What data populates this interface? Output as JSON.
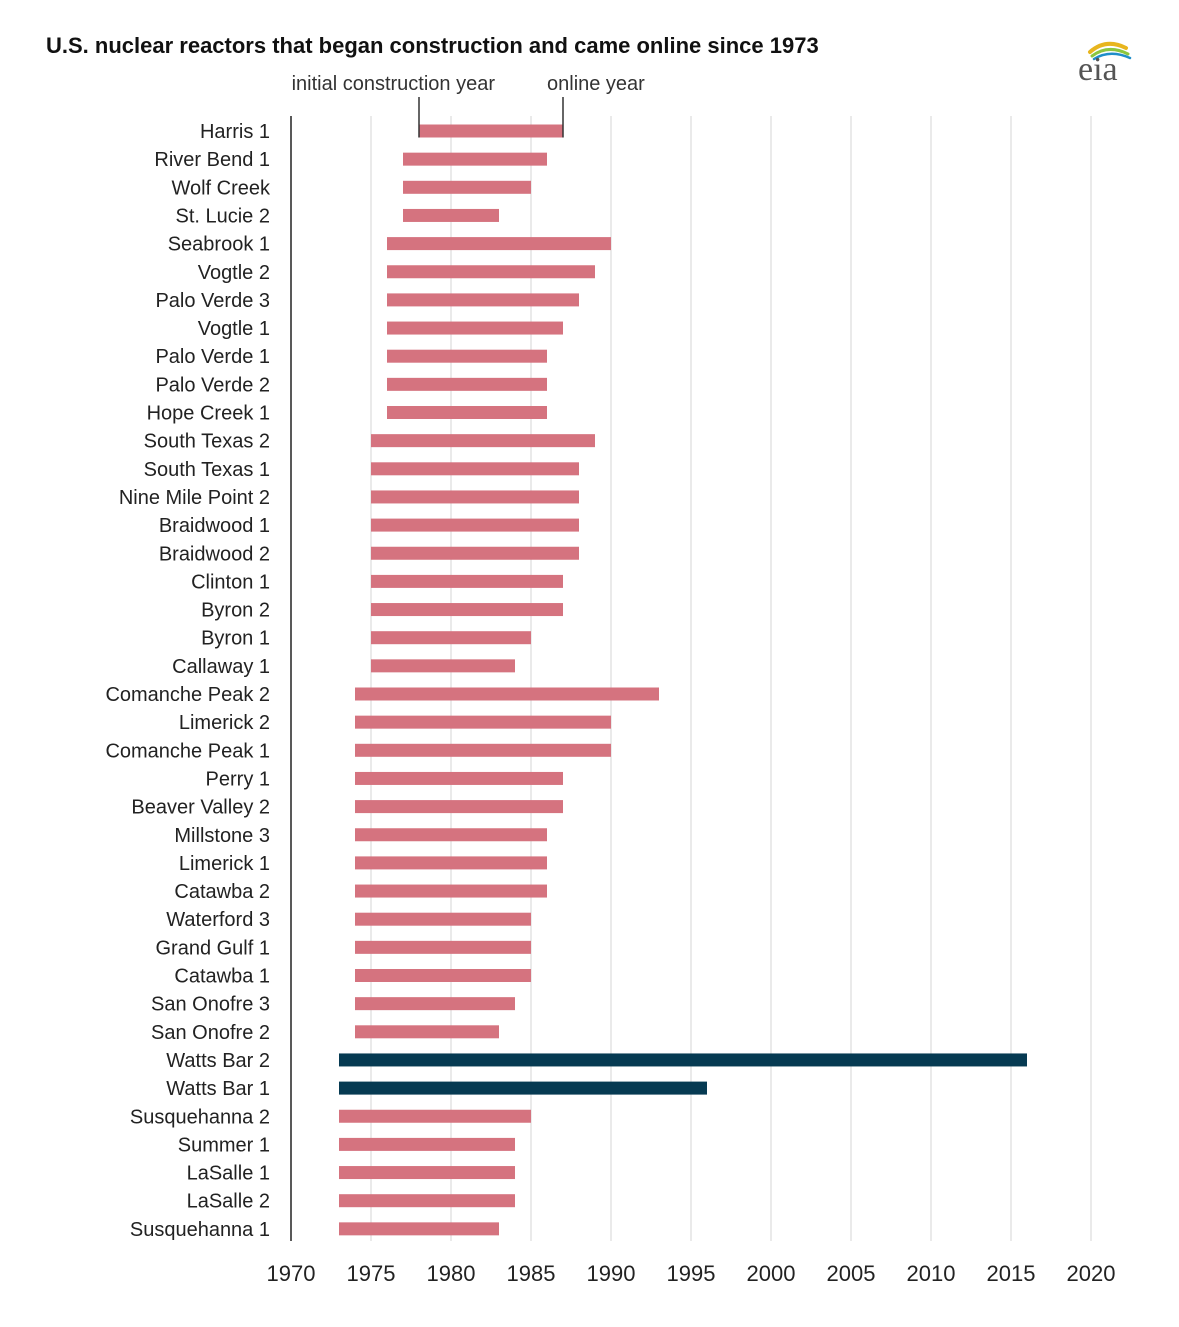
{
  "chart_data": {
    "type": "bar",
    "title": "U.S. nuclear reactors that began construction and came online since 1973",
    "annotations": {
      "start_label": "initial construction year",
      "end_label": "online year"
    },
    "xlim": [
      1970,
      2022
    ],
    "x_ticks": [
      1970,
      1975,
      1980,
      1985,
      1990,
      1995,
      2000,
      2005,
      2010,
      2015,
      2020
    ],
    "grid": true,
    "colors": {
      "default": "#d5737f",
      "highlight": "#063a52"
    },
    "reactors": [
      {
        "name": "Harris 1",
        "start": 1978,
        "online": 1987
      },
      {
        "name": "River Bend 1",
        "start": 1977,
        "online": 1986
      },
      {
        "name": "Wolf Creek",
        "start": 1977,
        "online": 1985
      },
      {
        "name": "St. Lucie 2",
        "start": 1977,
        "online": 1983
      },
      {
        "name": "Seabrook 1",
        "start": 1976,
        "online": 1990
      },
      {
        "name": "Vogtle 2",
        "start": 1976,
        "online": 1989
      },
      {
        "name": "Palo Verde 3",
        "start": 1976,
        "online": 1988
      },
      {
        "name": "Vogtle 1",
        "start": 1976,
        "online": 1987
      },
      {
        "name": "Palo Verde 1",
        "start": 1976,
        "online": 1986
      },
      {
        "name": "Palo Verde 2",
        "start": 1976,
        "online": 1986
      },
      {
        "name": "Hope Creek 1",
        "start": 1976,
        "online": 1986
      },
      {
        "name": "South Texas 2",
        "start": 1975,
        "online": 1989
      },
      {
        "name": "South Texas 1",
        "start": 1975,
        "online": 1988
      },
      {
        "name": "Nine Mile Point 2",
        "start": 1975,
        "online": 1988
      },
      {
        "name": "Braidwood 1",
        "start": 1975,
        "online": 1988
      },
      {
        "name": "Braidwood 2",
        "start": 1975,
        "online": 1988
      },
      {
        "name": "Clinton 1",
        "start": 1975,
        "online": 1987
      },
      {
        "name": "Byron 2",
        "start": 1975,
        "online": 1987
      },
      {
        "name": "Byron 1",
        "start": 1975,
        "online": 1985
      },
      {
        "name": "Callaway 1",
        "start": 1975,
        "online": 1984
      },
      {
        "name": "Comanche Peak 2",
        "start": 1974,
        "online": 1993
      },
      {
        "name": "Limerick 2",
        "start": 1974,
        "online": 1990
      },
      {
        "name": "Comanche Peak 1",
        "start": 1974,
        "online": 1990
      },
      {
        "name": "Perry 1",
        "start": 1974,
        "online": 1987
      },
      {
        "name": "Beaver Valley 2",
        "start": 1974,
        "online": 1987
      },
      {
        "name": "Millstone 3",
        "start": 1974,
        "online": 1986
      },
      {
        "name": "Limerick 1",
        "start": 1974,
        "online": 1986
      },
      {
        "name": "Catawba 2",
        "start": 1974,
        "online": 1986
      },
      {
        "name": "Waterford 3",
        "start": 1974,
        "online": 1985
      },
      {
        "name": "Grand Gulf 1",
        "start": 1974,
        "online": 1985
      },
      {
        "name": "Catawba 1",
        "start": 1974,
        "online": 1985
      },
      {
        "name": "San Onofre 3",
        "start": 1974,
        "online": 1984
      },
      {
        "name": "San Onofre 2",
        "start": 1974,
        "online": 1983
      },
      {
        "name": "Watts Bar 2",
        "start": 1973,
        "online": 2016,
        "highlight": true
      },
      {
        "name": "Watts Bar 1",
        "start": 1973,
        "online": 1996,
        "highlight": true
      },
      {
        "name": "Susquehanna 2",
        "start": 1973,
        "online": 1985
      },
      {
        "name": "Summer 1",
        "start": 1973,
        "online": 1984
      },
      {
        "name": "LaSalle 1",
        "start": 1973,
        "online": 1984
      },
      {
        "name": "LaSalle 2",
        "start": 1973,
        "online": 1984
      },
      {
        "name": "Susquehanna 1",
        "start": 1973,
        "online": 1983
      }
    ]
  },
  "logo": {
    "text": "eia",
    "icon": "eia-logo-icon"
  }
}
